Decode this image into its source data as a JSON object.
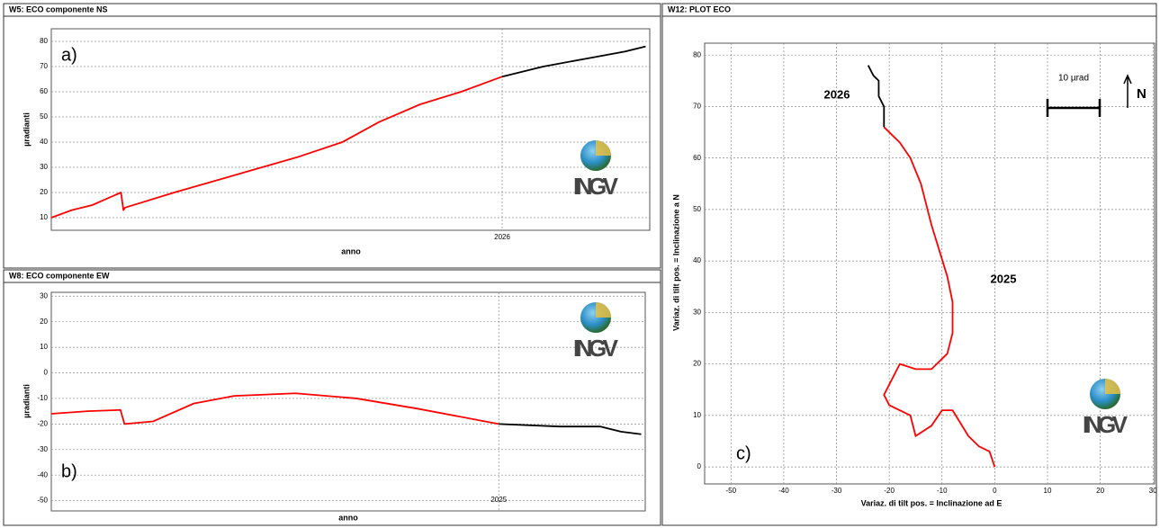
{
  "chart_data": [
    {
      "type": "line",
      "title": "W5: ECO componente NS",
      "x_label": "anno",
      "y_label": "µradianti",
      "annotation": "a)",
      "logo": "INGV",
      "x": [
        2024.9,
        2024.95,
        2025.0,
        2025.07,
        2025.076,
        2025.08,
        2025.2,
        2025.35,
        2025.5,
        2025.61,
        2025.7,
        2025.8,
        2025.9,
        2026.0,
        2026.1,
        2026.2,
        2026.3,
        2026.35
      ],
      "series": [
        {
          "color": "#ff0000",
          "values": [
            10,
            13,
            15,
            20,
            13,
            14,
            20,
            27,
            34,
            40,
            48,
            55,
            60,
            66,
            null,
            null,
            null,
            null
          ]
        },
        {
          "color": "#000000",
          "values": [
            null,
            null,
            null,
            null,
            null,
            null,
            null,
            null,
            null,
            null,
            null,
            null,
            null,
            66,
            70,
            73,
            76,
            78
          ]
        }
      ],
      "xlim": [
        2024.9,
        2026.36
      ],
      "xticks": [
        2026
      ],
      "ylim": [
        5,
        85
      ],
      "yticks": [
        10,
        20,
        30,
        40,
        50,
        60,
        70,
        80
      ],
      "grid": true
    },
    {
      "type": "line",
      "title": "W8: ECO componente EW",
      "x_label": "anno",
      "y_label": "µradianti",
      "annotation": "b)",
      "logo": "INGV",
      "x": [
        2023.9,
        2023.99,
        2024.07,
        2024.08,
        2024.15,
        2024.25,
        2024.35,
        2024.5,
        2024.65,
        2024.8,
        2025.0,
        2025.15,
        2025.25,
        2025.3,
        2025.35
      ],
      "series": [
        {
          "color": "#ff0000",
          "values": [
            -16,
            -15,
            -14.5,
            -20,
            -19,
            -12,
            -9,
            -8,
            -10,
            -14,
            -20,
            null,
            null,
            null,
            null
          ]
        },
        {
          "color": "#000000",
          "values": [
            null,
            null,
            null,
            null,
            null,
            null,
            null,
            null,
            null,
            null,
            -20,
            -21,
            -21,
            -23,
            -24
          ]
        }
      ],
      "xlim": [
        2023.9,
        2025.36
      ],
      "xticks": [
        2025
      ],
      "ylim": [
        -54,
        31.5
      ],
      "yticks": [
        30,
        20,
        10,
        0,
        -10,
        -20,
        -30,
        -40,
        -50
      ],
      "grid": true
    },
    {
      "type": "xyline",
      "title": "W12: PLOT ECO",
      "x_label": "Variaz. di tilt pos. = Inclinazione ad E",
      "y_label": "Variaz. di tilt pos. = Inclinazione a N",
      "annotation": "c)",
      "logo": "INGV",
      "scale_label": "10 µrad",
      "north_label": "N",
      "series": [
        {
          "name": "2025",
          "color": "#ff0000",
          "x": [
            0,
            -1,
            -3,
            -5,
            -8,
            -10,
            -12,
            -15,
            -16,
            -18,
            -20,
            -21,
            -18,
            -15,
            -12,
            -9,
            -8,
            -8,
            -9,
            -12,
            -14,
            -16,
            -18,
            -21
          ],
          "values": [
            0,
            3,
            4,
            6,
            11,
            11,
            8,
            6,
            10,
            11,
            12,
            14,
            20,
            19,
            19,
            22,
            26,
            32,
            37,
            47,
            55,
            60,
            63,
            66
          ]
        },
        {
          "name": "2026",
          "color": "#000000",
          "x": [
            -21,
            -21,
            -22,
            -22,
            -23,
            -24
          ],
          "values": [
            66,
            70,
            72,
            75,
            76,
            78
          ]
        }
      ],
      "xlim": [
        -55,
        30.3
      ],
      "xticks": [
        -50,
        -40,
        -30,
        -20,
        -10,
        0,
        10,
        20,
        30
      ],
      "ylim": [
        -3.3,
        82.3
      ],
      "yticks": [
        0,
        10,
        20,
        30,
        40,
        50,
        60,
        70,
        80
      ],
      "grid": true
    }
  ]
}
